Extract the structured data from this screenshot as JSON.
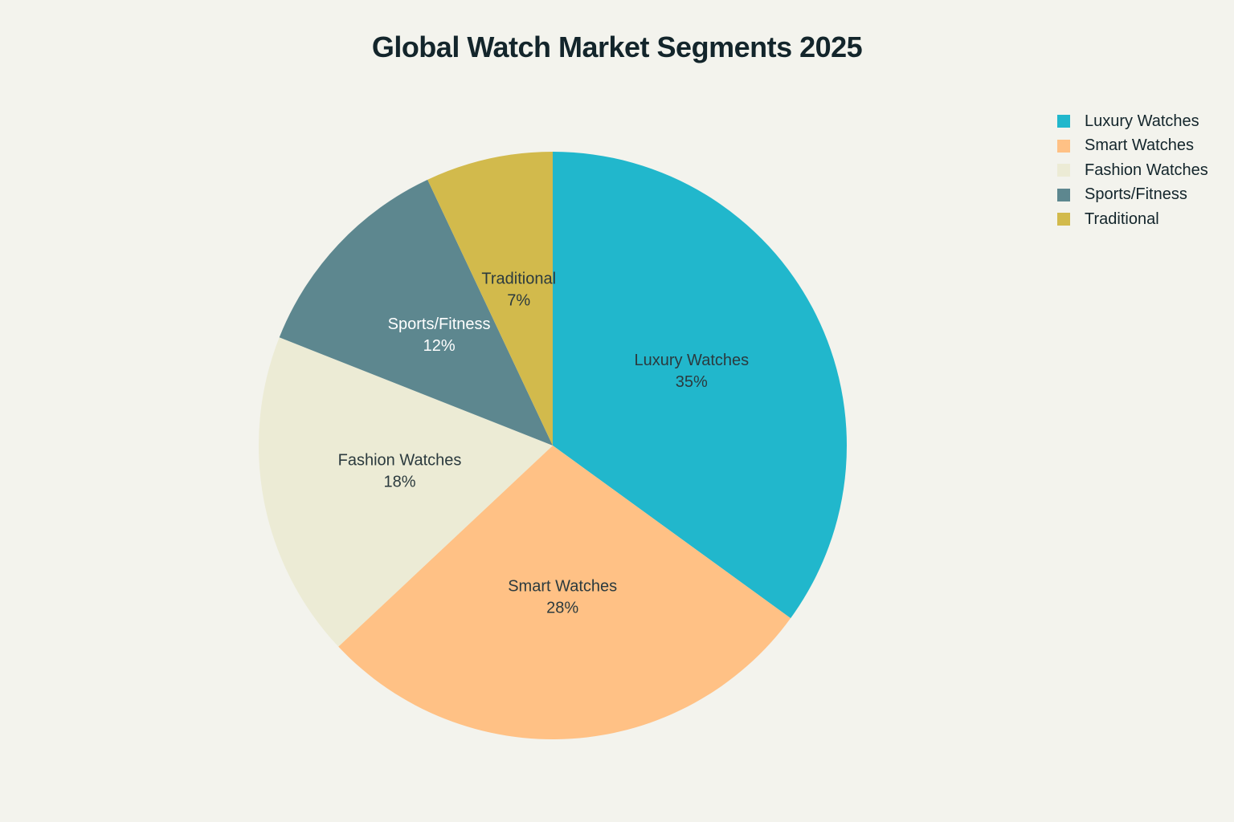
{
  "chart_data": {
    "type": "pie",
    "title": "Global Watch Market Segments 2025",
    "categories": [
      "Luxury Watches",
      "Smart Watches",
      "Fashion Watches",
      "Sports/Fitness",
      "Traditional"
    ],
    "values": [
      35,
      28,
      18,
      12,
      7
    ],
    "value_labels": [
      "35%",
      "28%",
      "18%",
      "12%",
      "7%"
    ],
    "unit": "%",
    "colors": [
      "#21b7cc",
      "#ffc185",
      "#eceBd5",
      "#5d878f",
      "#d2ba4c"
    ],
    "label_colors": [
      "#2b3a3e",
      "#2b3a3e",
      "#2b3a3e",
      "#ffffff",
      "#2b3a3e"
    ],
    "start_angle_deg": 0,
    "direction": "clockwise",
    "legend": {
      "position": "top-right",
      "entries": [
        "Luxury Watches",
        "Smart Watches",
        "Fashion Watches",
        "Sports/Fitness",
        "Traditional"
      ]
    }
  }
}
